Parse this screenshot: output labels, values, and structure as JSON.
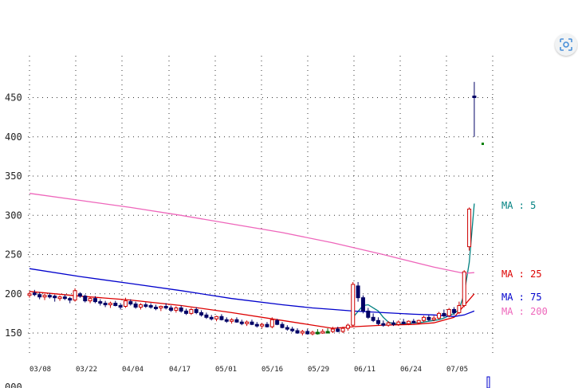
{
  "chart_data": {
    "type": "candlestick",
    "title": "",
    "xlabel": "",
    "ylabel": "",
    "ylim": [
      125,
      500
    ],
    "yticks": [
      "150",
      "200",
      "250",
      "300",
      "350",
      "400",
      "450"
    ],
    "bottom_tick_label": "000",
    "xtick_labels": [
      "03/08",
      "03/22",
      "04/04",
      "04/17",
      "05/01",
      "05/16",
      "05/29",
      "06/11",
      "06/24",
      "07/05"
    ],
    "grid": true,
    "colors": {
      "up": "#cc0000",
      "down": "#000066",
      "neutral": "#006600",
      "ma5": "#008080",
      "ma25": "#dd0000",
      "ma75": "#0000cc",
      "ma200": "#ee66bb"
    },
    "candles": [
      [
        198,
        203,
        195,
        200
      ],
      [
        201,
        205,
        197,
        199
      ],
      [
        199,
        202,
        193,
        196
      ],
      [
        196,
        200,
        192,
        198
      ],
      [
        198,
        201,
        194,
        197
      ],
      [
        197,
        199,
        190,
        195
      ],
      [
        195,
        198,
        191,
        196
      ],
      [
        196,
        199,
        192,
        194
      ],
      [
        194,
        196,
        188,
        192
      ],
      [
        192,
        207,
        190,
        204
      ],
      [
        200,
        202,
        195,
        197
      ],
      [
        197,
        199,
        189,
        191
      ],
      [
        191,
        196,
        188,
        194
      ],
      [
        194,
        197,
        188,
        190
      ],
      [
        190,
        193,
        185,
        188
      ],
      [
        188,
        191,
        183,
        186
      ],
      [
        186,
        190,
        182,
        188
      ],
      [
        188,
        191,
        184,
        185
      ],
      [
        185,
        188,
        180,
        184
      ],
      [
        184,
        195,
        182,
        191
      ],
      [
        190,
        193,
        185,
        187
      ],
      [
        187,
        190,
        181,
        183
      ],
      [
        183,
        188,
        180,
        186
      ],
      [
        186,
        189,
        182,
        185
      ],
      [
        185,
        188,
        181,
        183
      ],
      [
        183,
        186,
        179,
        182
      ],
      [
        182,
        185,
        178,
        184
      ],
      [
        184,
        188,
        180,
        182
      ],
      [
        182,
        185,
        177,
        179
      ],
      [
        179,
        184,
        176,
        182
      ],
      [
        182,
        185,
        176,
        178
      ],
      [
        178,
        181,
        173,
        175
      ],
      [
        175,
        182,
        173,
        180
      ],
      [
        180,
        183,
        174,
        176
      ],
      [
        176,
        179,
        171,
        173
      ],
      [
        173,
        176,
        168,
        170
      ],
      [
        170,
        173,
        166,
        168
      ],
      [
        168,
        172,
        165,
        171
      ],
      [
        171,
        174,
        166,
        167
      ],
      [
        167,
        170,
        163,
        165
      ],
      [
        165,
        169,
        162,
        167
      ],
      [
        167,
        170,
        163,
        164
      ],
      [
        164,
        167,
        160,
        162
      ],
      [
        162,
        166,
        159,
        164
      ],
      [
        164,
        167,
        160,
        161
      ],
      [
        161,
        164,
        157,
        159
      ],
      [
        159,
        163,
        156,
        161
      ],
      [
        161,
        164,
        157,
        158
      ],
      [
        158,
        170,
        156,
        167
      ],
      [
        166,
        168,
        160,
        161
      ],
      [
        161,
        164,
        156,
        157
      ],
      [
        157,
        160,
        153,
        155
      ],
      [
        155,
        158,
        151,
        153
      ],
      [
        153,
        156,
        149,
        150
      ],
      [
        150,
        154,
        147,
        152
      ],
      [
        152,
        155,
        148,
        149
      ],
      [
        149,
        153,
        147,
        151
      ],
      [
        151,
        155,
        148,
        151
      ],
      [
        151,
        155,
        149,
        152
      ],
      [
        152,
        156,
        150,
        152
      ],
      [
        152,
        158,
        150,
        155
      ],
      [
        155,
        158,
        151,
        152
      ],
      [
        152,
        158,
        150,
        156
      ],
      [
        156,
        162,
        153,
        160
      ],
      [
        160,
        215,
        158,
        212
      ],
      [
        210,
        215,
        190,
        195
      ],
      [
        195,
        198,
        175,
        178
      ],
      [
        178,
        182,
        168,
        170
      ],
      [
        170,
        175,
        164,
        166
      ],
      [
        166,
        170,
        160,
        162
      ],
      [
        162,
        166,
        158,
        160
      ],
      [
        160,
        165,
        158,
        163
      ],
      [
        163,
        166,
        159,
        161
      ],
      [
        161,
        166,
        159,
        164
      ],
      [
        164,
        168,
        161,
        162
      ],
      [
        162,
        166,
        160,
        165
      ],
      [
        165,
        168,
        162,
        163
      ],
      [
        163,
        167,
        161,
        166
      ],
      [
        166,
        172,
        164,
        170
      ],
      [
        170,
        173,
        165,
        167
      ],
      [
        167,
        172,
        165,
        169
      ],
      [
        169,
        177,
        167,
        175
      ],
      [
        175,
        180,
        170,
        172
      ],
      [
        172,
        182,
        170,
        180
      ],
      [
        180,
        183,
        173,
        176
      ],
      [
        176,
        190,
        174,
        185
      ],
      [
        185,
        230,
        183,
        228
      ],
      [
        260,
        310,
        255,
        308
      ],
      [
        452,
        470,
        400,
        450
      ]
    ],
    "series": [
      {
        "name": "MA : 5",
        "color": "#008080",
        "x": [
          64,
          66,
          67,
          69,
          70,
          71,
          72,
          73,
          74,
          75,
          76,
          77,
          78,
          79,
          80,
          81,
          82,
          83,
          84,
          85,
          86,
          87,
          88
        ],
        "values": [
          170,
          185,
          186,
          178,
          170,
          164,
          162,
          161,
          162,
          162,
          163,
          163,
          164,
          165,
          166,
          167,
          169,
          172,
          175,
          180,
          200,
          240,
          315
        ]
      },
      {
        "name": "MA : 25",
        "color": "#dd0000",
        "x": [
          0,
          10,
          20,
          30,
          40,
          50,
          56,
          60,
          64,
          70,
          76,
          80,
          84,
          86,
          88
        ],
        "values": [
          203,
          197,
          192,
          185,
          176,
          166,
          160,
          156,
          158,
          160,
          161,
          163,
          170,
          185,
          200
        ]
      },
      {
        "name": "MA : 75",
        "color": "#0000cc",
        "x": [
          0,
          10,
          20,
          30,
          40,
          50,
          56,
          60,
          64,
          70,
          76,
          80,
          84,
          86,
          88
        ],
        "values": [
          232,
          222,
          213,
          204,
          194,
          186,
          182,
          180,
          178,
          176,
          174,
          173,
          171,
          173,
          178
        ]
      },
      {
        "name": "MA : 200",
        "color": "#ee66bb",
        "x": [
          0,
          10,
          20,
          30,
          40,
          50,
          60,
          70,
          80,
          86,
          88
        ],
        "values": [
          328,
          319,
          310,
          300,
          289,
          278,
          265,
          250,
          234,
          226,
          227
        ]
      }
    ]
  }
}
